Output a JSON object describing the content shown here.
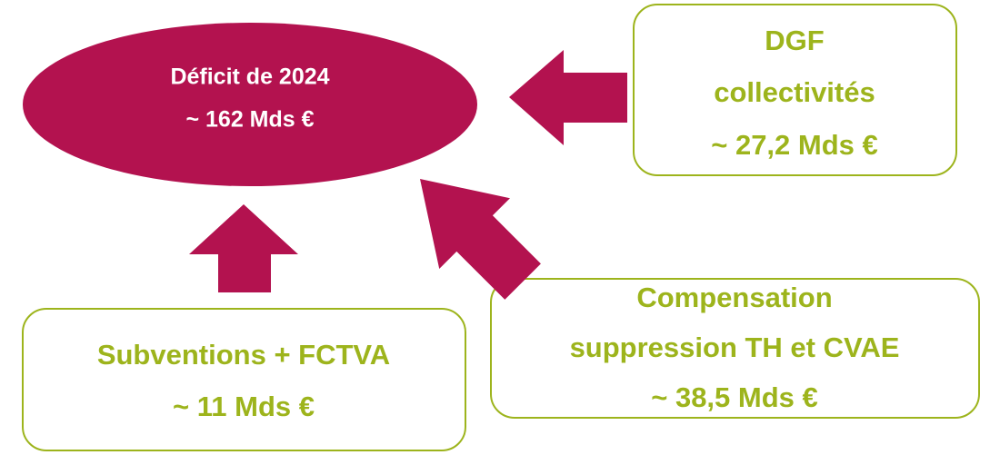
{
  "nodes": [
    {
      "lines": [
        "Déficit de 2024",
        "~ 162 Mds €"
      ]
    },
    {
      "lines": [
        "DGF",
        "collectivités",
        "~ 27,2 Mds €"
      ]
    },
    {
      "lines": [
        "Compensation",
        "suppression TH et CVAE",
        "~ 38,5 Mds €"
      ]
    },
    {
      "lines": [
        "Subventions + FCTVA",
        "~ 11 Mds €"
      ]
    }
  ]
}
